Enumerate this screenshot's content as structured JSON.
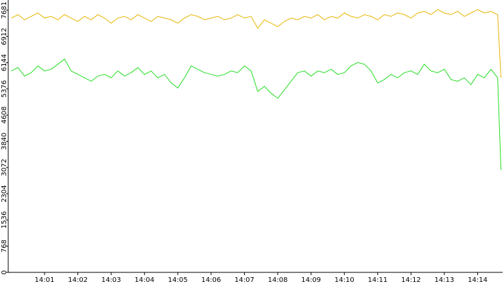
{
  "chart_data": {
    "type": "line",
    "x": [
      840.0,
      840.2,
      840.4,
      840.6,
      840.8,
      841.0,
      841.2,
      841.4,
      841.6,
      841.8,
      842.0,
      842.2,
      842.4,
      842.6,
      842.8,
      843.0,
      843.2,
      843.4,
      843.6,
      843.8,
      844.0,
      844.2,
      844.4,
      844.6,
      844.8,
      845.0,
      845.2,
      845.4,
      845.6,
      845.8,
      846.0,
      846.2,
      846.4,
      846.6,
      846.8,
      847.0,
      847.2,
      847.4,
      847.6,
      847.8,
      848.0,
      848.2,
      848.4,
      848.6,
      848.8,
      849.0,
      849.2,
      849.4,
      849.6,
      849.8,
      850.0,
      850.2,
      850.4,
      850.6,
      850.8,
      851.0,
      851.2,
      851.4,
      851.6,
      851.8,
      852.0,
      852.2,
      852.4,
      852.6,
      852.8,
      853.0,
      853.2,
      853.4,
      853.6,
      853.8,
      854.0,
      854.2,
      854.4,
      854.6,
      854.7
    ],
    "series": [
      {
        "color": "#e6b400",
        "values": [
          7450,
          7550,
          7400,
          7500,
          7600,
          7450,
          7500,
          7400,
          7550,
          7450,
          7350,
          7500,
          7400,
          7550,
          7450,
          7300,
          7450,
          7500,
          7400,
          7550,
          7450,
          7350,
          7500,
          7450,
          7400,
          7300,
          7450,
          7550,
          7500,
          7400,
          7450,
          7500,
          7400,
          7450,
          7550,
          7450,
          7500,
          7150,
          7400,
          7300,
          7200,
          7350,
          7450,
          7400,
          7500,
          7450,
          7550,
          7400,
          7500,
          7450,
          7600,
          7500,
          7450,
          7550,
          7500,
          7400,
          7550,
          7500,
          7600,
          7550,
          7450,
          7600,
          7650,
          7550,
          7700,
          7600,
          7550,
          7650,
          7500,
          7600,
          7700,
          7600,
          7650,
          7550,
          5700
        ]
      },
      {
        "color": "#22dd22",
        "values": [
          5900,
          6000,
          5750,
          5850,
          6050,
          5900,
          5950,
          6100,
          6250,
          5900,
          5800,
          5700,
          5600,
          5750,
          5800,
          5700,
          5900,
          5750,
          5850,
          6000,
          5800,
          5900,
          5700,
          5800,
          5550,
          5400,
          5700,
          6050,
          5950,
          5850,
          5800,
          5750,
          5800,
          5900,
          5850,
          6050,
          5900,
          5300,
          5450,
          5250,
          5100,
          5350,
          5600,
          5850,
          5900,
          5750,
          5900,
          5850,
          5950,
          5800,
          5850,
          6050,
          6150,
          6100,
          5900,
          5550,
          5650,
          5800,
          5700,
          5850,
          5900,
          5800,
          6100,
          5900,
          5850,
          5950,
          5650,
          5600,
          5700,
          5500,
          5800,
          5700,
          5950,
          5700,
          3000
        ]
      }
    ],
    "xlim": [
      839.91,
      854.75
    ],
    "xticks": [
      {
        "value": 841,
        "label": "14:01"
      },
      {
        "value": 842,
        "label": "14:02"
      },
      {
        "value": 843,
        "label": "14:03"
      },
      {
        "value": 844,
        "label": "14:04"
      },
      {
        "value": 845,
        "label": "14:05"
      },
      {
        "value": 846,
        "label": "14:06"
      },
      {
        "value": 847,
        "label": "14:07"
      },
      {
        "value": 848,
        "label": "14:08"
      },
      {
        "value": 849,
        "label": "14:09"
      },
      {
        "value": 850,
        "label": "14:10"
      },
      {
        "value": 851,
        "label": "14:11"
      },
      {
        "value": 852,
        "label": "14:12"
      },
      {
        "value": 853,
        "label": "14:13"
      },
      {
        "value": 854,
        "label": "14:14"
      }
    ],
    "ylim": [
      0,
      7980
    ],
    "yticks": [
      0,
      768,
      1536,
      2304,
      3072,
      3840,
      4608,
      5376,
      6144,
      6912,
      7681
    ]
  }
}
